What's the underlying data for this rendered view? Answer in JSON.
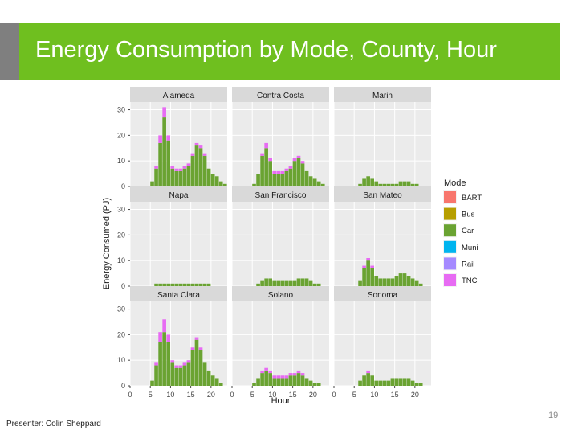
{
  "slide": {
    "title": "Energy Consumption by Mode, County, Hour",
    "footer": "Presenter: Colin Sheppard",
    "page_number": "19"
  },
  "colors": {
    "title_bar": "#6fbf1f",
    "accent_bar": "#7f7f7f",
    "panel_bg": "#ebebeb",
    "strip_bg": "#d9d9d9",
    "BART": "#f8766d",
    "Bus": "#b79f00",
    "Car": "#6aa332",
    "Muni": "#00b4ef",
    "Rail": "#a58aff",
    "TNC": "#e76bf3"
  },
  "chart_data": {
    "type": "bar",
    "stacked": true,
    "faceted": true,
    "xlabel": "Hour",
    "ylabel": "Energy Consumed (PJ)",
    "x_ticks": [
      0,
      5,
      10,
      15,
      20
    ],
    "y_ticks": [
      0,
      10,
      20,
      30
    ],
    "xlim": [
      0,
      24
    ],
    "ylim": [
      0,
      33
    ],
    "grid": true,
    "legend": {
      "title": "Mode",
      "position": "right",
      "entries": [
        "BART",
        "Bus",
        "Car",
        "Muni",
        "Rail",
        "TNC"
      ]
    },
    "hours": [
      0,
      1,
      2,
      3,
      4,
      5,
      6,
      7,
      8,
      9,
      10,
      11,
      12,
      13,
      14,
      15,
      16,
      17,
      18,
      19,
      20,
      21,
      22,
      23
    ],
    "panels": [
      {
        "county": "Alameda",
        "car": [
          0,
          0,
          0,
          0,
          0,
          2,
          7,
          17,
          27,
          18,
          7,
          6,
          6,
          7,
          8,
          12,
          16,
          15,
          12,
          7,
          5,
          4,
          2,
          1
        ],
        "tnc": [
          0,
          0,
          0,
          0,
          0,
          0,
          1,
          3,
          4,
          2,
          1,
          1,
          1,
          1,
          1,
          1,
          1,
          1,
          1,
          0,
          0,
          0,
          0,
          0
        ]
      },
      {
        "county": "Contra Costa",
        "car": [
          0,
          0,
          0,
          0,
          0,
          1,
          5,
          12,
          15,
          10,
          5,
          5,
          5,
          6,
          7,
          10,
          11,
          9,
          6,
          4,
          3,
          2,
          1,
          0
        ],
        "tnc": [
          0,
          0,
          0,
          0,
          0,
          0,
          0,
          1,
          2,
          1,
          1,
          1,
          1,
          1,
          1,
          1,
          1,
          1,
          0,
          0,
          0,
          0,
          0,
          0
        ]
      },
      {
        "county": "Marin",
        "car": [
          0,
          0,
          0,
          0,
          0,
          0,
          1,
          3,
          4,
          3,
          2,
          1,
          1,
          1,
          1,
          1,
          2,
          2,
          2,
          1,
          1,
          0,
          0,
          0
        ],
        "tnc": [
          0,
          0,
          0,
          0,
          0,
          0,
          0,
          0,
          0,
          0,
          0,
          0,
          0,
          0,
          0,
          0,
          0,
          0,
          0,
          0,
          0,
          0,
          0,
          0
        ]
      },
      {
        "county": "Napa",
        "car": [
          0,
          0,
          0,
          0,
          0,
          0,
          1,
          1,
          1,
          1,
          1,
          1,
          1,
          1,
          1,
          1,
          1,
          1,
          1,
          1,
          0,
          0,
          0,
          0
        ],
        "tnc": [
          0,
          0,
          0,
          0,
          0,
          0,
          0,
          0,
          0,
          0,
          0,
          0,
          0,
          0,
          0,
          0,
          0,
          0,
          0,
          0,
          0,
          0,
          0,
          0
        ]
      },
      {
        "county": "San Francisco",
        "car": [
          0,
          0,
          0,
          0,
          0,
          0,
          1,
          2,
          3,
          3,
          2,
          2,
          2,
          2,
          2,
          2,
          3,
          3,
          3,
          2,
          1,
          1,
          0,
          0
        ],
        "tnc": [
          0,
          0,
          0,
          0,
          0,
          0,
          0,
          0,
          0,
          0,
          0,
          0,
          0,
          0,
          0,
          0,
          0,
          0,
          0,
          0,
          0,
          0,
          0,
          0
        ]
      },
      {
        "county": "San Mateo",
        "car": [
          0,
          0,
          0,
          0,
          0,
          0,
          2,
          7,
          10,
          7,
          4,
          3,
          3,
          3,
          3,
          4,
          5,
          5,
          4,
          3,
          2,
          1,
          0,
          0
        ],
        "tnc": [
          0,
          0,
          0,
          0,
          0,
          0,
          0,
          1,
          1,
          1,
          0,
          0,
          0,
          0,
          0,
          0,
          0,
          0,
          0,
          0,
          0,
          0,
          0,
          0
        ]
      },
      {
        "county": "Santa Clara",
        "car": [
          0,
          0,
          0,
          0,
          0,
          2,
          8,
          17,
          21,
          17,
          9,
          7,
          7,
          8,
          9,
          14,
          18,
          14,
          9,
          6,
          4,
          3,
          1,
          0
        ],
        "tnc": [
          0,
          0,
          0,
          0,
          0,
          0,
          1,
          4,
          5,
          3,
          1,
          1,
          1,
          1,
          1,
          1,
          1,
          1,
          0,
          0,
          0,
          0,
          0,
          0
        ]
      },
      {
        "county": "Solano",
        "car": [
          0,
          0,
          0,
          0,
          0,
          1,
          3,
          5,
          6,
          5,
          3,
          3,
          3,
          3,
          4,
          4,
          5,
          4,
          3,
          2,
          1,
          1,
          0,
          0
        ],
        "tnc": [
          0,
          0,
          0,
          0,
          0,
          0,
          0,
          1,
          1,
          1,
          1,
          1,
          1,
          1,
          1,
          1,
          1,
          1,
          0,
          0,
          0,
          0,
          0,
          0
        ]
      },
      {
        "county": "Sonoma",
        "car": [
          0,
          0,
          0,
          0,
          0,
          0,
          2,
          4,
          5,
          4,
          2,
          2,
          2,
          2,
          3,
          3,
          3,
          3,
          3,
          2,
          1,
          1,
          0,
          0
        ],
        "tnc": [
          0,
          0,
          0,
          0,
          0,
          0,
          0,
          0,
          1,
          0,
          0,
          0,
          0,
          0,
          0,
          0,
          0,
          0,
          0,
          0,
          0,
          0,
          0,
          0
        ]
      }
    ]
  }
}
